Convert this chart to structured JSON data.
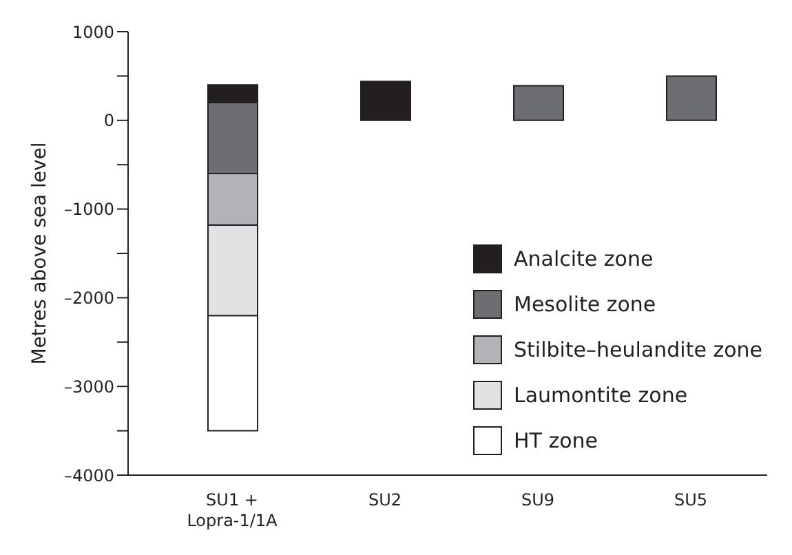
{
  "chart_data": {
    "type": "bar",
    "ylabel": "Metres above sea level",
    "categories": [
      "SU1 +\nLopra-1/1A",
      "SU2",
      "SU9",
      "SU5"
    ],
    "series": [
      {
        "name": "HT zone",
        "color": "#ffffff",
        "values": [
          1300,
          null,
          null,
          null
        ],
        "base": [
          -3500,
          null,
          null,
          null
        ]
      },
      {
        "name": "Laumontite zone",
        "color": "#e1e2e3",
        "values": [
          1020,
          null,
          null,
          null
        ],
        "base": [
          -2200,
          null,
          null,
          null
        ]
      },
      {
        "name": "Stilbite–heulandite zone",
        "color": "#b1b3b6",
        "values": [
          580,
          null,
          null,
          null
        ],
        "base": [
          -1180,
          null,
          null,
          null
        ]
      },
      {
        "name": "Mesolite zone",
        "color": "#6d6e71",
        "values": [
          800,
          null,
          390,
          500
        ],
        "base": [
          -600,
          null,
          0,
          0
        ]
      },
      {
        "name": "Analcite zone",
        "color": "#231f20",
        "values": [
          200,
          440,
          null,
          null
        ],
        "base": [
          200,
          0,
          null,
          null
        ]
      }
    ],
    "ylim": [
      -4000,
      1000
    ],
    "yticks": [
      {
        "value": -4000,
        "label": "–4000"
      },
      {
        "value": -3500,
        "label": null
      },
      {
        "value": -3000,
        "label": "–3000"
      },
      {
        "value": -2500,
        "label": null
      },
      {
        "value": -2000,
        "label": "–2000"
      },
      {
        "value": -1500,
        "label": null
      },
      {
        "value": -1000,
        "label": "–1000"
      },
      {
        "value": -500,
        "label": null
      },
      0,
      {
        "value": 500,
        "label": null
      },
      1000
    ],
    "grid": false,
    "legend": "right"
  }
}
